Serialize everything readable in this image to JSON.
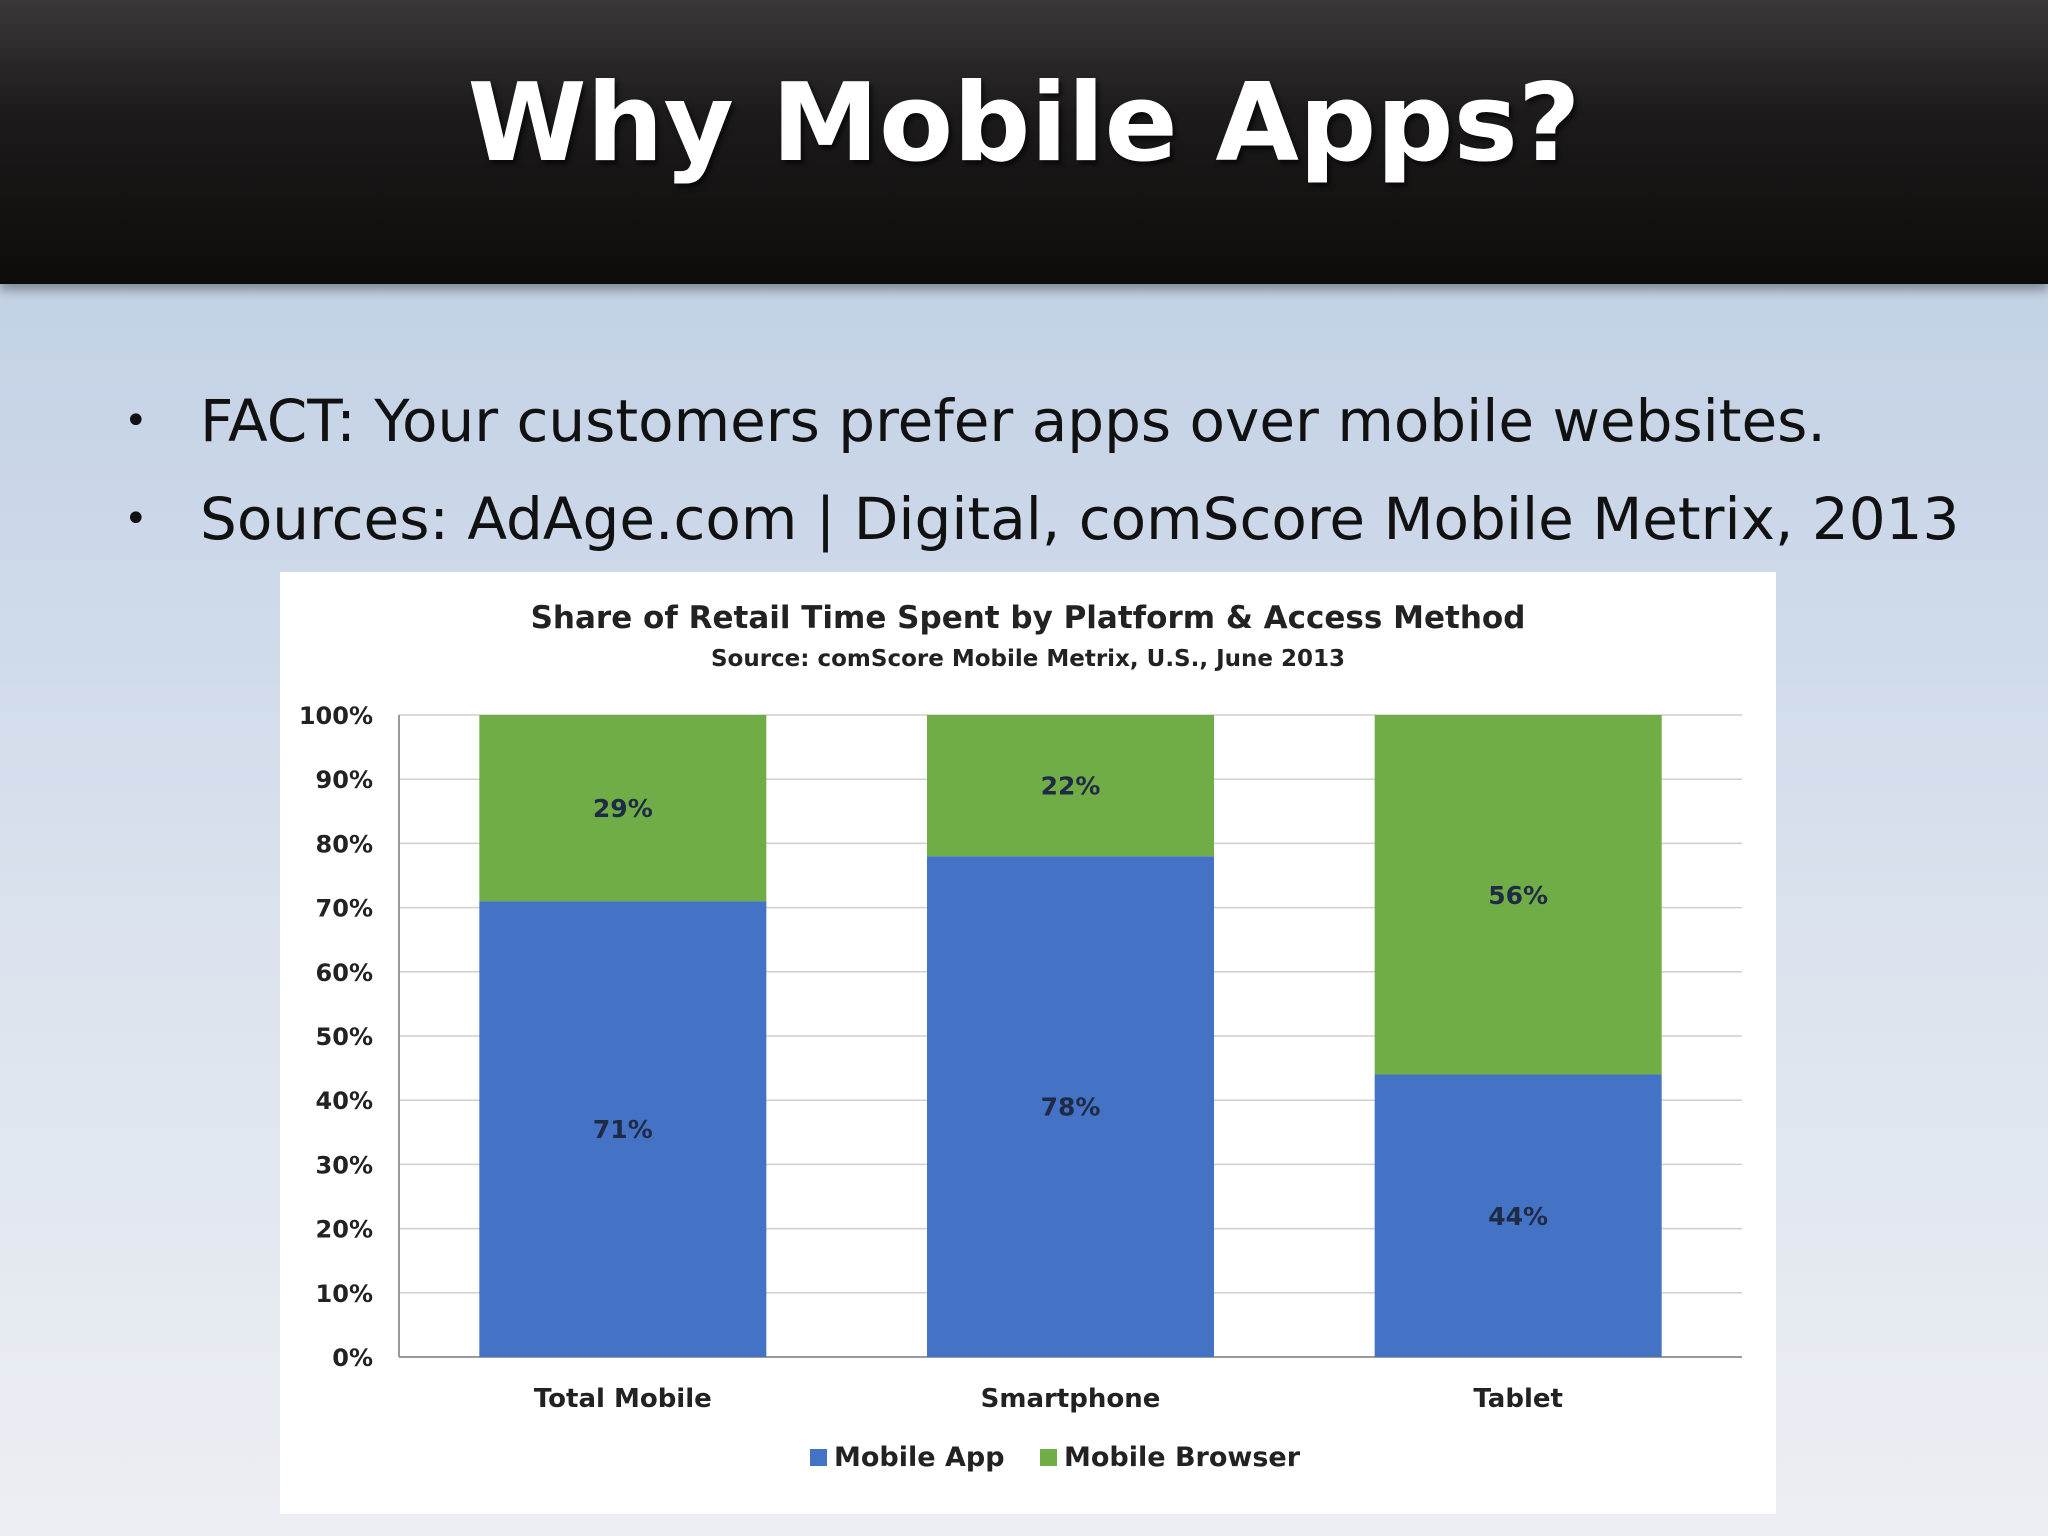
{
  "slide": {
    "title": "Why Mobile Apps?",
    "bullets": [
      "FACT: Your customers prefer apps over mobile websites.",
      "Sources: AdAge.com | Digital, comScore Mobile Metrix, 2013"
    ]
  },
  "chart_data": {
    "type": "bar",
    "stacked": true,
    "title": "Share of Retail Time Spent by Platform & Access Method",
    "subtitle": "Source: comScore Mobile Metrix, U.S., June 2013",
    "categories": [
      "Total Mobile",
      "Smartphone",
      "Tablet"
    ],
    "series": [
      {
        "name": "Mobile App",
        "values": [
          71,
          78,
          44
        ],
        "labels": [
          "71%",
          "78%",
          "44%"
        ],
        "color": "#4472c4"
      },
      {
        "name": "Mobile Browser",
        "values": [
          29,
          22,
          56
        ],
        "labels": [
          "29%",
          "22%",
          "56%"
        ],
        "color": "#70ad47"
      }
    ],
    "ylim": [
      0,
      100
    ],
    "yticks": [
      0,
      10,
      20,
      30,
      40,
      50,
      60,
      70,
      80,
      90,
      100
    ],
    "ytick_labels": [
      "0%",
      "10%",
      "20%",
      "30%",
      "40%",
      "50%",
      "60%",
      "70%",
      "80%",
      "90%",
      "100%"
    ],
    "grid": true,
    "legend": "bottom"
  }
}
